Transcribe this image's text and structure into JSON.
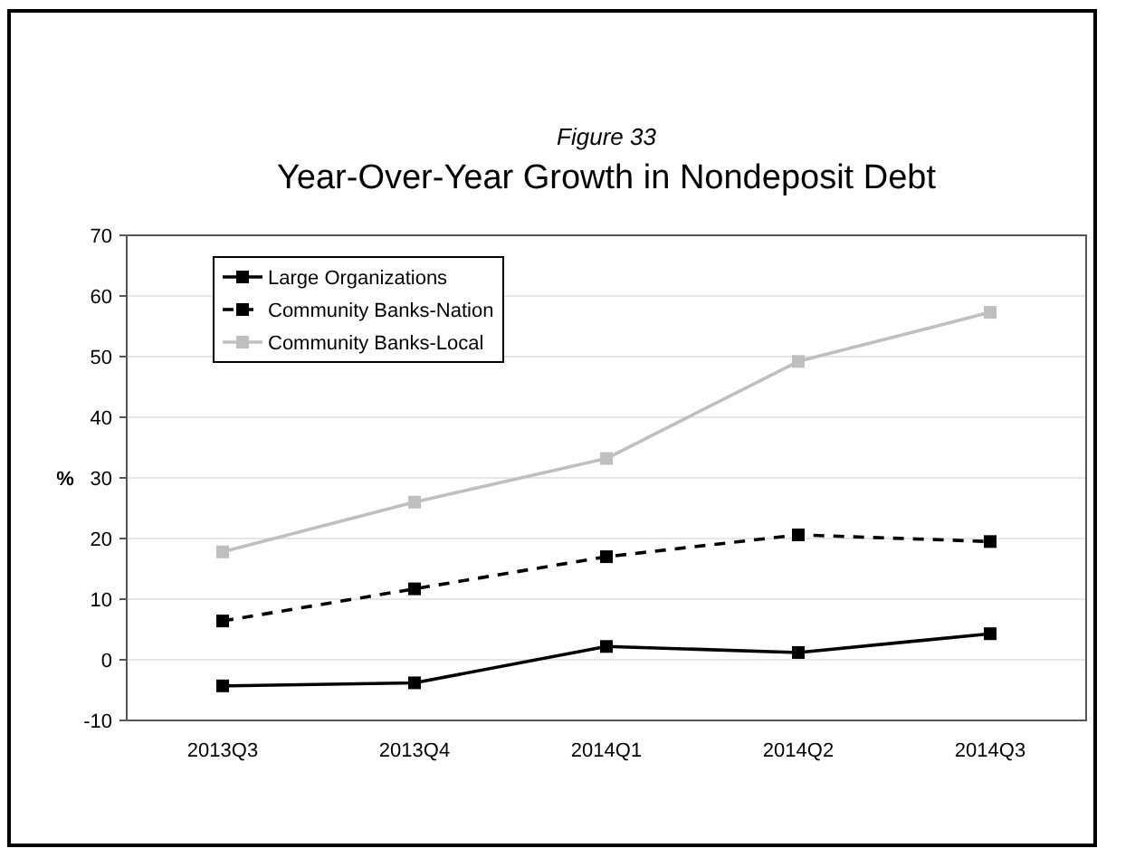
{
  "chart_data": {
    "type": "line",
    "subtitle": "Figure 33",
    "title": "Year-Over-Year Growth in Nondeposit Debt",
    "ylabel": "%",
    "categories": [
      "2013Q3",
      "2013Q4",
      "2014Q1",
      "2014Q2",
      "2014Q3"
    ],
    "series": [
      {
        "name": "Large Organizations",
        "color": "#000000",
        "values": [
          -4.3,
          -3.8,
          2.2,
          1.2,
          4.3
        ],
        "line_style": "solid"
      },
      {
        "name": "Community Banks-Nation",
        "color": "#000000",
        "values": [
          6.4,
          11.7,
          17.0,
          20.6,
          19.5
        ],
        "line_style": "dashed"
      },
      {
        "name": "Community Banks-Local",
        "color": "#bfbfbf",
        "values": [
          17.8,
          26.0,
          33.2,
          49.2,
          57.3
        ],
        "line_style": "solid"
      }
    ],
    "ylim": [
      -10,
      70
    ],
    "yticks": [
      -10,
      0,
      10,
      20,
      30,
      40,
      50,
      60,
      70
    ],
    "grid": "y",
    "legend": "top left",
    "marker": "square"
  }
}
